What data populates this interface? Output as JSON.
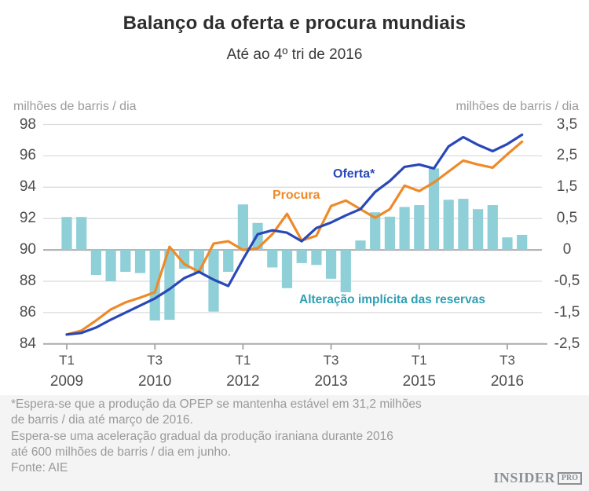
{
  "title": "Balanço da oferta e procura mundiais",
  "subtitle": "Até ao 4º tri de 2016",
  "left_axis": {
    "caption": "milhões de barris / dia",
    "ticks": [
      "98",
      "96",
      "94",
      "92",
      "90",
      "88",
      "86",
      "84"
    ]
  },
  "right_axis": {
    "caption": "milhões de barris / dia",
    "ticks": [
      "3,5",
      "2,5",
      "1,5",
      "0,5",
      "0",
      "-0,5",
      "-1,5",
      "-2,5"
    ]
  },
  "x_axis": {
    "ticks": [
      {
        "quarter": "T1",
        "year": "2009"
      },
      {
        "quarter": "T3",
        "year": "2010"
      },
      {
        "quarter": "T1",
        "year": "2012"
      },
      {
        "quarter": "T3",
        "year": "2013"
      },
      {
        "quarter": "T1",
        "year": "2015"
      },
      {
        "quarter": "T3",
        "year": "2016"
      }
    ]
  },
  "legend": {
    "oferta": "Oferta*",
    "procura": "Procura",
    "reservas": "Alteração implícita das reservas"
  },
  "colors": {
    "oferta": "#2948b8",
    "procura": "#ee8a28",
    "reservas_bar": "#8ecfd8",
    "reservas_text": "#2f9fb4",
    "gridline": "#dcdcdc",
    "axis_line": "#ababab",
    "tick_text": "#4d4d4d",
    "caption_text": "#9b9b9b"
  },
  "footnote_lines": [
    "*Espera-se que a produção da OPEP se mantenha estável em 31,2 milhões",
    "de barris / dia até março de 2016.",
    "Espera-se uma aceleração gradual da produção iraniana durante 2016",
    "até 600 milhões de barris / dia em junho.",
    "Fonte: AIE"
  ],
  "logo": {
    "name": "INSIDER",
    "suffix": "PRO"
  },
  "chart_data": {
    "type": "mixed line+bar, dual axis",
    "x": [
      "T1 2009",
      "T2 2009",
      "T3 2009",
      "T4 2009",
      "T1 2010",
      "T2 2010",
      "T3 2010",
      "T4 2010",
      "T1 2011",
      "T2 2011",
      "T3 2011",
      "T4 2011",
      "T1 2012",
      "T2 2012",
      "T3 2012",
      "T4 2012",
      "T1 2013",
      "T2 2013",
      "T3 2013",
      "T4 2013",
      "T1 2014",
      "T2 2014",
      "T3 2014",
      "T4 2014",
      "T1 2015",
      "T2 2015",
      "T3 2015",
      "T4 2015",
      "T1 2016",
      "T2 2016",
      "T3 2016",
      "T4 2016"
    ],
    "left_ylim": [
      84,
      98
    ],
    "right_ylim": [
      -2.5,
      3.5
    ],
    "grid": "horizontal only",
    "series": [
      {
        "name": "Oferta*",
        "type": "line",
        "axis": "left",
        "color": "#2948b8",
        "values": [
          84.6,
          84.7,
          85.05,
          85.55,
          86.0,
          86.45,
          86.9,
          87.5,
          88.2,
          88.6,
          88.1,
          87.7,
          89.4,
          91.0,
          91.25,
          91.1,
          90.55,
          91.4,
          91.75,
          92.2,
          92.6,
          93.7,
          94.4,
          95.3,
          95.45,
          95.2,
          96.6,
          97.2,
          96.7,
          96.3,
          96.75,
          97.35
        ]
      },
      {
        "name": "Procura",
        "type": "line",
        "axis": "left",
        "color": "#ee8a28",
        "values": [
          84.6,
          84.85,
          85.5,
          86.2,
          86.65,
          86.95,
          87.3,
          90.2,
          89.1,
          88.6,
          90.4,
          90.55,
          90.0,
          90.1,
          91.0,
          92.3,
          90.6,
          90.9,
          92.8,
          93.15,
          92.6,
          92.05,
          92.6,
          94.1,
          93.75,
          94.3,
          95.0,
          95.7,
          95.45,
          95.25,
          96.1,
          96.9
        ]
      },
      {
        "name": "Alteração implícita das reservas",
        "type": "bar",
        "axis": "right",
        "color": "#8ecfd8",
        "values": [
          0.55,
          0.55,
          -0.4,
          -0.5,
          -0.35,
          -0.37,
          -1.75,
          -1.73,
          -0.3,
          -0.38,
          -1.47,
          -0.35,
          0.95,
          0.43,
          -0.28,
          -0.72,
          -0.21,
          -0.24,
          -0.46,
          -0.85,
          0.15,
          0.7,
          0.56,
          0.87,
          0.93,
          2.1,
          1.1,
          1.13,
          0.8,
          0.93,
          0.2,
          0.24
        ]
      }
    ]
  }
}
